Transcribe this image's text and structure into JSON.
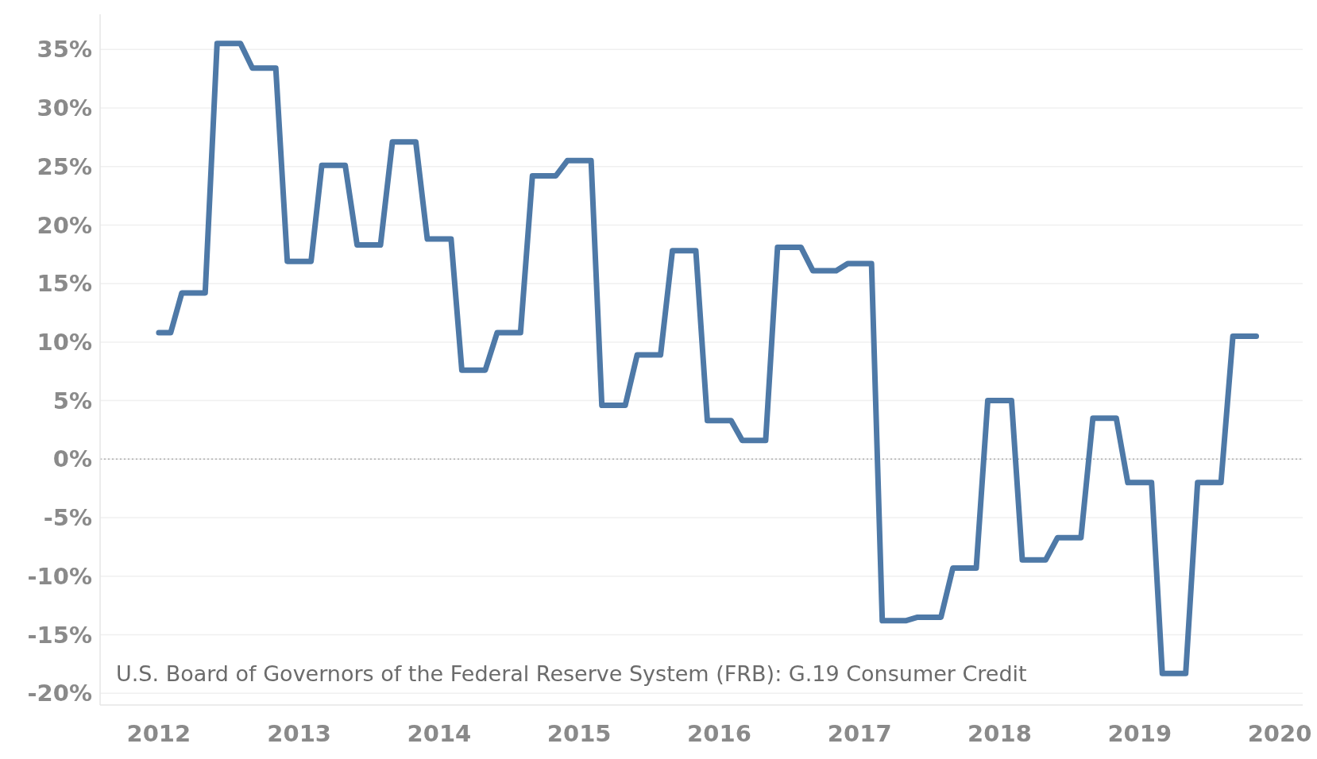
{
  "chart_data": {
    "type": "line",
    "x": [
      "2012-01",
      "2012-02",
      "2012-03",
      "2012-04",
      "2012-05",
      "2012-06",
      "2012-07",
      "2012-08",
      "2012-09",
      "2012-10",
      "2012-11",
      "2012-12",
      "2013-01",
      "2013-02",
      "2013-03",
      "2013-04",
      "2013-05",
      "2013-06",
      "2013-07",
      "2013-08",
      "2013-09",
      "2013-10",
      "2013-11",
      "2013-12",
      "2014-01",
      "2014-02",
      "2014-03",
      "2014-04",
      "2014-05",
      "2014-06",
      "2014-07",
      "2014-08",
      "2014-09",
      "2014-10",
      "2014-11",
      "2014-12",
      "2015-01",
      "2015-02",
      "2015-03",
      "2015-04",
      "2015-05",
      "2015-06",
      "2015-07",
      "2015-08",
      "2015-09",
      "2015-10",
      "2015-11",
      "2015-12",
      "2016-01",
      "2016-02",
      "2016-03",
      "2016-04",
      "2016-05",
      "2016-06",
      "2016-07",
      "2016-08",
      "2016-09",
      "2016-10",
      "2016-11",
      "2016-12",
      "2017-01",
      "2017-02",
      "2017-03",
      "2017-04",
      "2017-05",
      "2017-06",
      "2017-07",
      "2017-08",
      "2017-09",
      "2017-10",
      "2017-11",
      "2017-12",
      "2018-01",
      "2018-02",
      "2018-03",
      "2018-04",
      "2018-05",
      "2018-06",
      "2018-07",
      "2018-08",
      "2018-09",
      "2018-10",
      "2018-11",
      "2018-12",
      "2019-01",
      "2019-02",
      "2019-03",
      "2019-04",
      "2019-05",
      "2019-06",
      "2019-07",
      "2019-08",
      "2019-09",
      "2019-10",
      "2019-11"
    ],
    "series": [
      {
        "color": "#4e79a7",
        "values": [
          10.8,
          10.8,
          14.2,
          14.2,
          14.2,
          35.5,
          35.5,
          35.5,
          33.4,
          33.4,
          33.4,
          16.9,
          16.9,
          16.9,
          25.1,
          25.1,
          25.1,
          18.3,
          18.3,
          18.3,
          27.1,
          27.1,
          27.1,
          18.8,
          18.8,
          18.8,
          7.6,
          7.6,
          7.6,
          10.8,
          10.8,
          10.8,
          24.2,
          24.2,
          24.2,
          25.5,
          25.5,
          25.5,
          4.6,
          4.6,
          4.6,
          8.9,
          8.9,
          8.9,
          17.8,
          17.8,
          17.8,
          3.3,
          3.3,
          3.3,
          1.6,
          1.6,
          1.6,
          18.1,
          18.1,
          18.1,
          16.1,
          16.1,
          16.1,
          16.7,
          16.7,
          16.7,
          -13.8,
          -13.8,
          -13.8,
          -13.5,
          -13.5,
          -13.5,
          -9.3,
          -9.3,
          -9.3,
          5.0,
          5.0,
          5.0,
          -8.6,
          -8.6,
          -8.6,
          -6.7,
          -6.7,
          -6.7,
          3.5,
          3.5,
          3.5,
          -2.0,
          -2.0,
          -2.0,
          -18.3,
          -18.3,
          -18.3,
          -2.0,
          -2.0,
          -2.0,
          10.5,
          10.5,
          10.5
        ]
      }
    ],
    "xlim": [
      "2011-08",
      "2020-03"
    ],
    "xticks": [
      "2012",
      "2013",
      "2014",
      "2015",
      "2016",
      "2017",
      "2018",
      "2019",
      "2020"
    ],
    "ylim": [
      -21,
      38
    ],
    "yticks": [
      {
        "value": -20,
        "label": "-20%"
      },
      {
        "value": -15,
        "label": "-15%"
      },
      {
        "value": -10,
        "label": "-10%"
      },
      {
        "value": -5,
        "label": "-5%"
      },
      {
        "value": 0,
        "label": "0%"
      },
      {
        "value": 5,
        "label": "5%"
      },
      {
        "value": 10,
        "label": "10%"
      },
      {
        "value": 15,
        "label": "15%"
      },
      {
        "value": 20,
        "label": "20%"
      },
      {
        "value": 25,
        "label": "25%"
      },
      {
        "value": 30,
        "label": "30%"
      },
      {
        "value": 35,
        "label": "35%"
      }
    ],
    "grid": "y",
    "marker": "none",
    "line_style": "solid",
    "ref_lines": [
      {
        "axis": "y",
        "value": 0,
        "color": "#b0b0b0",
        "line_style": "dotted"
      }
    ],
    "annotations": [
      "U.S. Board of Governors of the Federal Reserve System (FRB): G.19 Consumer Credit"
    ]
  }
}
